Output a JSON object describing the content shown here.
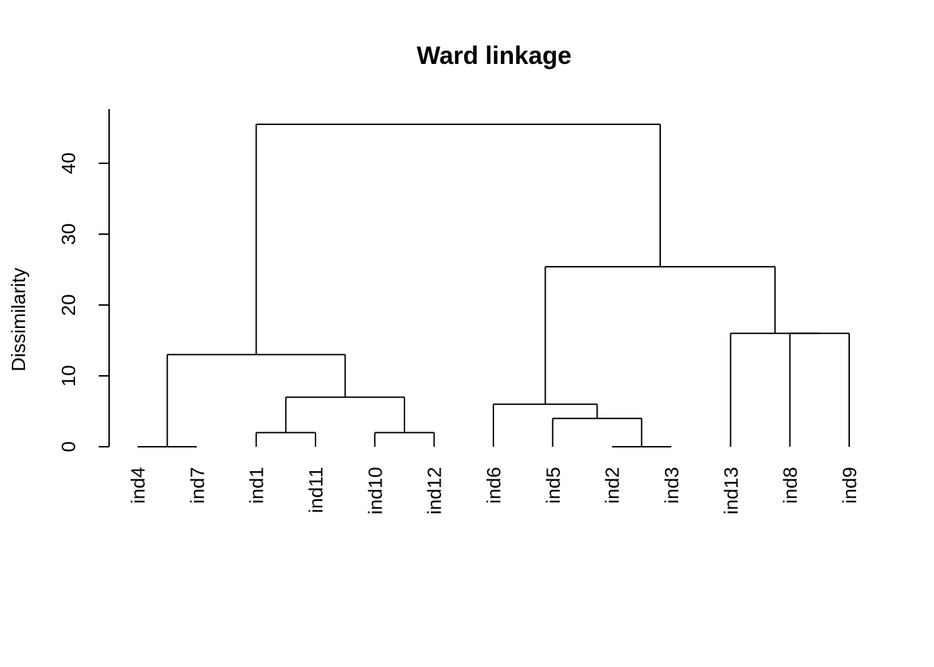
{
  "chart_data": {
    "type": "dendrogram",
    "title": "Ward linkage",
    "ylabel": "Dissimilarity",
    "xlabel": "",
    "ylim": [
      0,
      45.5
    ],
    "yticks": [
      "0",
      "10",
      "20",
      "30",
      "40"
    ],
    "ytick_values": [
      0,
      10,
      20,
      30,
      40
    ],
    "leaves": [
      "ind4",
      "ind7",
      "ind1",
      "ind11",
      "ind10",
      "ind12",
      "ind6",
      "ind5",
      "ind2",
      "ind3",
      "ind13",
      "ind8",
      "ind9"
    ],
    "merges": [
      {
        "left": "ind4",
        "right": "ind7",
        "height": 0
      },
      {
        "left": "ind2",
        "right": "ind3",
        "height": 0
      },
      {
        "left": "ind1",
        "right": "ind11",
        "height": 2
      },
      {
        "left": "ind10",
        "right": "ind12",
        "height": 2
      },
      {
        "left": "ind5",
        "right": "(ind2,ind3)",
        "height": 4
      },
      {
        "left": "ind6",
        "right": "(ind5,ind2,ind3)",
        "height": 6
      },
      {
        "left": "(ind1,ind11)",
        "right": "(ind10,ind12)",
        "height": 7
      },
      {
        "left": "(ind4,ind7)",
        "right": "(ind1,ind11,ind10,ind12)",
        "height": 13
      },
      {
        "left": "ind8",
        "right": "ind9",
        "height": 16
      },
      {
        "left": "ind13",
        "right": "(ind8,ind9)",
        "height": 16
      },
      {
        "left": "(ind6,ind5,ind2,ind3)",
        "right": "(ind13,ind8,ind9)",
        "height": 25.4
      },
      {
        "left": "(ind4,ind7,ind1,ind11,ind10,ind12)",
        "right": "(ind6,ind5,ind2,ind3,ind13,ind8,ind9)",
        "height": 45.5
      }
    ],
    "grid": false,
    "legend": "none"
  }
}
